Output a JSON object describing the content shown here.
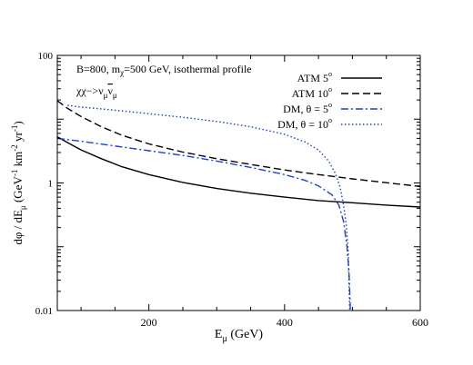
{
  "chart_data": {
    "type": "line",
    "annotations": [
      {
        "prefix": "B=800, m",
        "sub": "χ",
        "suffix": "=500 GeV, isothermal profile"
      },
      {
        "prefix": "χχ−>ν",
        "sub1": "μ",
        "bar": "ν",
        "sub2": "μ"
      }
    ],
    "xlabel": {
      "main": "E",
      "sub": "μ",
      "rest": " (GeV)"
    },
    "ylabel": {
      "parts": [
        "dφ / dE",
        "μ",
        " (GeV",
        "-1",
        " km",
        "-2",
        " yr",
        "-1",
        ")"
      ]
    },
    "xlim": [
      65,
      600
    ],
    "ylim": [
      0.01,
      100
    ],
    "yscale": "log",
    "xticks": [
      200,
      400,
      600
    ],
    "yticks": [
      {
        "value": 0.01,
        "label": "0.01"
      },
      {
        "value": 1,
        "label": "1"
      },
      {
        "value": 100,
        "label": "100"
      }
    ],
    "series": [
      {
        "name": "ATM 5°",
        "legend": {
          "text": "ATM 5",
          "sup": "o"
        },
        "color": "#000000",
        "dash": "",
        "points": [
          [
            65,
            5.3
          ],
          [
            80,
            4.3
          ],
          [
            100,
            3.3
          ],
          [
            130,
            2.4
          ],
          [
            160,
            1.8
          ],
          [
            200,
            1.35
          ],
          [
            250,
            1.02
          ],
          [
            300,
            0.82
          ],
          [
            350,
            0.69
          ],
          [
            400,
            0.6
          ],
          [
            450,
            0.53
          ],
          [
            500,
            0.49
          ],
          [
            550,
            0.45
          ],
          [
            600,
            0.42
          ]
        ]
      },
      {
        "name": "ATM 10°",
        "legend": {
          "text": "ATM 10",
          "sup": "o"
        },
        "color": "#000000",
        "dash": "8,4",
        "points": [
          [
            65,
            19.5
          ],
          [
            80,
            14.8
          ],
          [
            100,
            11.0
          ],
          [
            130,
            7.6
          ],
          [
            160,
            5.6
          ],
          [
            200,
            4.1
          ],
          [
            250,
            3.05
          ],
          [
            300,
            2.4
          ],
          [
            350,
            1.95
          ],
          [
            400,
            1.6
          ],
          [
            450,
            1.35
          ],
          [
            500,
            1.16
          ],
          [
            550,
            1.01
          ],
          [
            600,
            0.88
          ]
        ]
      },
      {
        "name": "DM, θ = 5°",
        "legend": {
          "text": "DM, θ = 5",
          "sup": "o"
        },
        "color": "#1a3fe0",
        "dash": "8,3,2,3",
        "points": [
          [
            65,
            5.0
          ],
          [
            100,
            4.5
          ],
          [
            150,
            3.8
          ],
          [
            200,
            3.2
          ],
          [
            250,
            2.7
          ],
          [
            300,
            2.2
          ],
          [
            350,
            1.75
          ],
          [
            400,
            1.35
          ],
          [
            430,
            1.1
          ],
          [
            450,
            0.9
          ],
          [
            470,
            0.65
          ],
          [
            480,
            0.45
          ],
          [
            487,
            0.25
          ],
          [
            492,
            0.1
          ],
          [
            495,
            0.04
          ],
          [
            497,
            0.01
          ]
        ]
      },
      {
        "name": "DM, θ = 10°",
        "legend": {
          "text": "DM, θ = 10",
          "sup": "o"
        },
        "color": "#1a3fe0",
        "dash": "1.5,2.5",
        "points": [
          [
            80,
            16.5
          ],
          [
            100,
            15.5
          ],
          [
            150,
            13.8
          ],
          [
            200,
            12.2
          ],
          [
            250,
            10.7
          ],
          [
            300,
            9.2
          ],
          [
            350,
            7.6
          ],
          [
            400,
            5.8
          ],
          [
            430,
            4.4
          ],
          [
            450,
            3.3
          ],
          [
            465,
            2.2
          ],
          [
            475,
            1.4
          ],
          [
            482,
            0.85
          ],
          [
            487,
            0.45
          ],
          [
            491,
            0.22
          ],
          [
            494,
            0.08
          ],
          [
            496,
            0.01
          ]
        ]
      }
    ]
  }
}
